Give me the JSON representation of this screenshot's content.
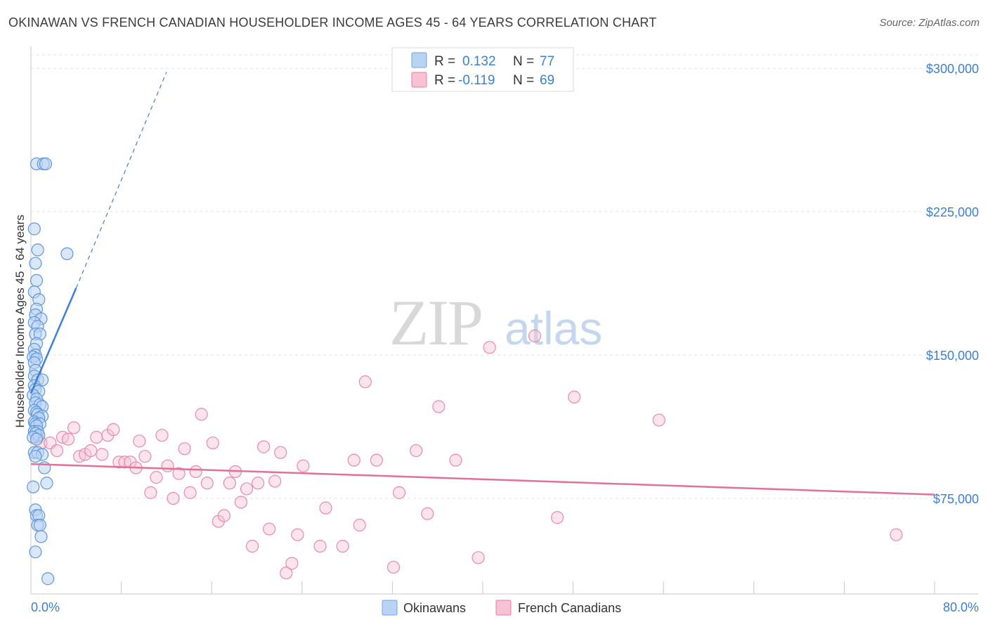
{
  "title": "OKINAWAN VS FRENCH CANADIAN HOUSEHOLDER INCOME AGES 45 - 64 YEARS CORRELATION CHART",
  "source": "Source: ZipAtlas.com",
  "watermark": {
    "zip": "ZIP",
    "atlas": "atlas"
  },
  "legend_top": {
    "r_label": "R =",
    "n_label": "N =",
    "rows": [
      {
        "name": "Okinawans",
        "r": "0.132",
        "n": "77",
        "color": "#6fa3e6",
        "fill": "#b9d3f3"
      },
      {
        "name": "French Canadians",
        "r": "-0.119",
        "n": "69",
        "color": "#e87aa0",
        "fill": "#f7c3d4"
      }
    ]
  },
  "legend_bottom": [
    "Okinawans",
    "French Canadians"
  ],
  "colors": {
    "blue": "#3f7fd4",
    "pink": "#e2709a",
    "tick": "#3d7fd1"
  },
  "chart_data": {
    "type": "scatter",
    "title": "OKINAWAN VS FRENCH CANADIAN HOUSEHOLDER INCOME AGES 45 - 64 YEARS CORRELATION CHART",
    "xlabel": "",
    "ylabel": "Householder Income Ages 45 - 64 years",
    "xlim": [
      0,
      80
    ],
    "ylim": [
      25000,
      310000
    ],
    "x_tick_labels": [
      "0.0%",
      "80.0%"
    ],
    "y_ticks": [
      75000,
      150000,
      225000,
      300000
    ],
    "y_tick_labels": [
      "$75,000",
      "$150,000",
      "$225,000",
      "$300,000"
    ],
    "series": [
      {
        "name": "Okinawans",
        "r": 0.132,
        "n": 77,
        "trend": {
          "x": [
            0,
            4
          ],
          "y": [
            130000,
            185000
          ],
          "dashed_to": {
            "x": 12,
            "y": 298000
          }
        },
        "points": [
          [
            0.5,
            250000
          ],
          [
            1.1,
            250000
          ],
          [
            1.3,
            250000
          ],
          [
            0.3,
            216000
          ],
          [
            0.6,
            205000
          ],
          [
            3.2,
            203000
          ],
          [
            0.4,
            198000
          ],
          [
            0.5,
            189000
          ],
          [
            0.3,
            183000
          ],
          [
            0.7,
            179000
          ],
          [
            0.5,
            174000
          ],
          [
            0.4,
            171000
          ],
          [
            0.9,
            169000
          ],
          [
            0.3,
            167000
          ],
          [
            0.6,
            165000
          ],
          [
            0.4,
            161000
          ],
          [
            0.8,
            161000
          ],
          [
            0.5,
            156000
          ],
          [
            0.3,
            153000
          ],
          [
            0.4,
            150000
          ],
          [
            0.2,
            149000
          ],
          [
            0.5,
            148000
          ],
          [
            0.3,
            146000
          ],
          [
            0.4,
            142000
          ],
          [
            0.3,
            139000
          ],
          [
            0.6,
            137000
          ],
          [
            1.0,
            137000
          ],
          [
            0.3,
            134000
          ],
          [
            0.4,
            132000
          ],
          [
            0.7,
            131000
          ],
          [
            0.2,
            129000
          ],
          [
            0.5,
            127000
          ],
          [
            0.4,
            125000
          ],
          [
            0.8,
            124000
          ],
          [
            1.0,
            123000
          ],
          [
            0.3,
            121000
          ],
          [
            0.5,
            120000
          ],
          [
            0.6,
            119000
          ],
          [
            1.0,
            118000
          ],
          [
            0.7,
            117000
          ],
          [
            0.3,
            115000
          ],
          [
            0.4,
            114000
          ],
          [
            0.8,
            114000
          ],
          [
            0.5,
            113000
          ],
          [
            0.3,
            110000
          ],
          [
            0.6,
            110000
          ],
          [
            0.4,
            109000
          ],
          [
            0.7,
            108000
          ],
          [
            0.2,
            107000
          ],
          [
            0.5,
            106000
          ],
          [
            0.3,
            99000
          ],
          [
            0.6,
            99000
          ],
          [
            1.0,
            98000
          ],
          [
            0.4,
            97000
          ],
          [
            1.2,
            91000
          ],
          [
            1.4,
            83000
          ],
          [
            0.2,
            81000
          ],
          [
            0.4,
            69000
          ],
          [
            0.5,
            66000
          ],
          [
            0.7,
            66000
          ],
          [
            0.6,
            61000
          ],
          [
            0.8,
            61000
          ],
          [
            0.9,
            55000
          ],
          [
            0.4,
            47000
          ],
          [
            1.5,
            33000
          ]
        ]
      },
      {
        "name": "French Canadians",
        "r": -0.119,
        "n": 69,
        "trend": {
          "x": [
            0,
            80
          ],
          "y": [
            93000,
            77000
          ]
        },
        "points": [
          [
            0.6,
            107000
          ],
          [
            0.9,
            104000
          ],
          [
            1.7,
            104000
          ],
          [
            2.3,
            100000
          ],
          [
            2.8,
            107000
          ],
          [
            3.3,
            106000
          ],
          [
            3.8,
            112000
          ],
          [
            4.3,
            97000
          ],
          [
            4.8,
            98000
          ],
          [
            5.3,
            100000
          ],
          [
            5.8,
            107000
          ],
          [
            6.3,
            98000
          ],
          [
            6.8,
            108000
          ],
          [
            7.3,
            111000
          ],
          [
            7.8,
            94000
          ],
          [
            8.3,
            94000
          ],
          [
            8.8,
            94000
          ],
          [
            9.3,
            91000
          ],
          [
            9.6,
            105000
          ],
          [
            10.1,
            97000
          ],
          [
            10.6,
            78000
          ],
          [
            11.1,
            86000
          ],
          [
            11.6,
            108000
          ],
          [
            12.1,
            92000
          ],
          [
            12.6,
            75000
          ],
          [
            13.1,
            88000
          ],
          [
            13.6,
            101000
          ],
          [
            14.1,
            78000
          ],
          [
            14.6,
            89000
          ],
          [
            15.1,
            119000
          ],
          [
            15.6,
            83000
          ],
          [
            16.1,
            104000
          ],
          [
            16.6,
            63000
          ],
          [
            17.1,
            66000
          ],
          [
            17.6,
            83000
          ],
          [
            18.1,
            89000
          ],
          [
            18.6,
            73000
          ],
          [
            19.1,
            80000
          ],
          [
            19.6,
            50000
          ],
          [
            20.1,
            83000
          ],
          [
            20.6,
            102000
          ],
          [
            21.1,
            59000
          ],
          [
            21.6,
            84000
          ],
          [
            22.1,
            99000
          ],
          [
            22.6,
            36000
          ],
          [
            23.1,
            41000
          ],
          [
            23.6,
            56000
          ],
          [
            24.1,
            92000
          ],
          [
            25.6,
            50000
          ],
          [
            26.1,
            70000
          ],
          [
            27.6,
            50000
          ],
          [
            28.6,
            95000
          ],
          [
            29.1,
            61000
          ],
          [
            29.6,
            136000
          ],
          [
            30.6,
            95000
          ],
          [
            32.1,
            39000
          ],
          [
            32.6,
            78000
          ],
          [
            34.1,
            100000
          ],
          [
            35.1,
            67000
          ],
          [
            36.1,
            123000
          ],
          [
            37.6,
            95000
          ],
          [
            39.6,
            44000
          ],
          [
            40.6,
            154000
          ],
          [
            44.6,
            160000
          ],
          [
            46.6,
            65000
          ],
          [
            48.1,
            128000
          ],
          [
            55.6,
            116000
          ],
          [
            76.6,
            56000
          ]
        ]
      }
    ]
  }
}
